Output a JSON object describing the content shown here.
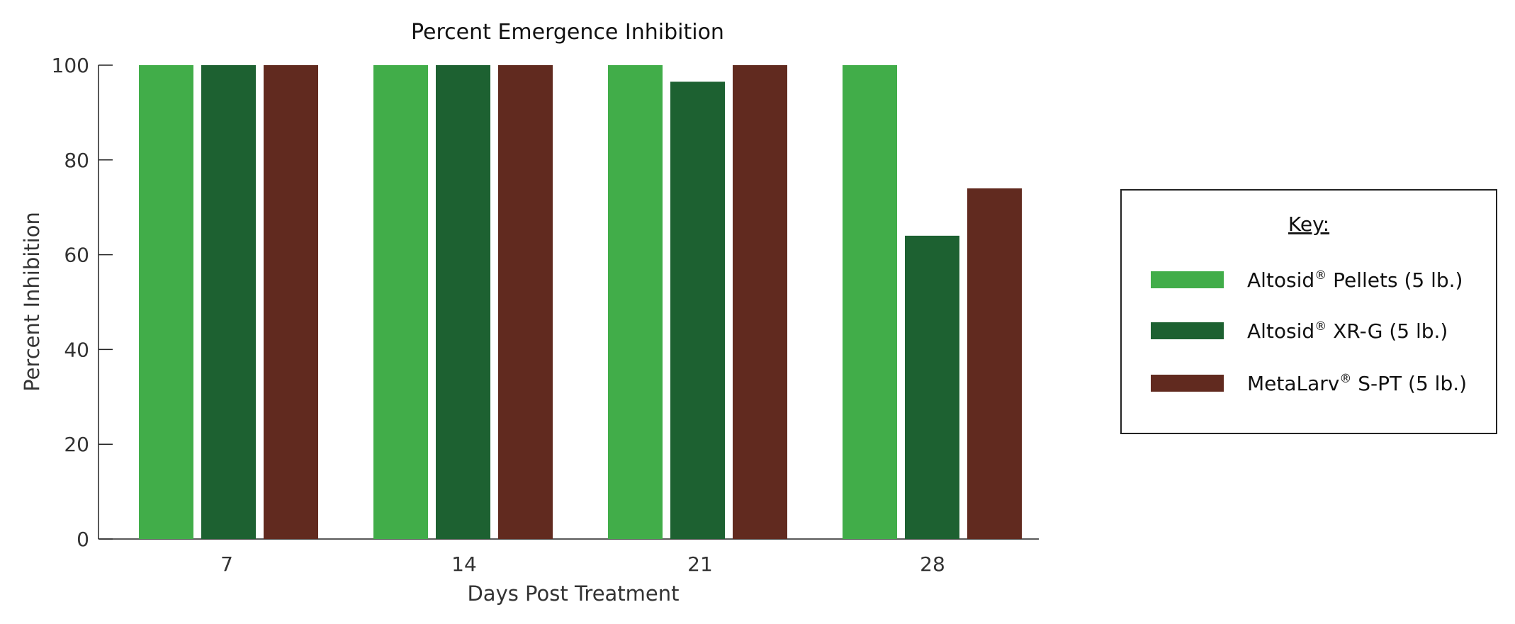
{
  "chart_data": {
    "type": "bar",
    "title": "Percent Emergence Inhibition",
    "xlabel": "Days Post Treatment",
    "ylabel": "Percent Inhibition",
    "ylim": [
      0,
      100
    ],
    "yticks": [
      0,
      20,
      40,
      60,
      80,
      100
    ],
    "categories": [
      "7",
      "14",
      "21",
      "28"
    ],
    "series": [
      {
        "name": "Altosid® Pellets (5 lb.)",
        "base": "Altosid",
        "suffix": " Pellets (5 lb.)",
        "color": "#41ad49",
        "values": [
          100,
          100,
          100,
          100
        ]
      },
      {
        "name": "Altosid® XR-G (5 lb.)",
        "base": "Altosid",
        "suffix": " XR-G (5 lb.)",
        "color": "#1d6131",
        "values": [
          100,
          100,
          96.5,
          64
        ]
      },
      {
        "name": "MetaLarv® S-PT (5 lb.)",
        "base": "MetaLarv",
        "suffix": " S-PT (5 lb.)",
        "color": "#612a1f",
        "values": [
          100,
          100,
          100,
          74
        ]
      }
    ],
    "legend": {
      "title": "Key:",
      "position": "right",
      "registered_mark": "®"
    },
    "grid": false
  }
}
